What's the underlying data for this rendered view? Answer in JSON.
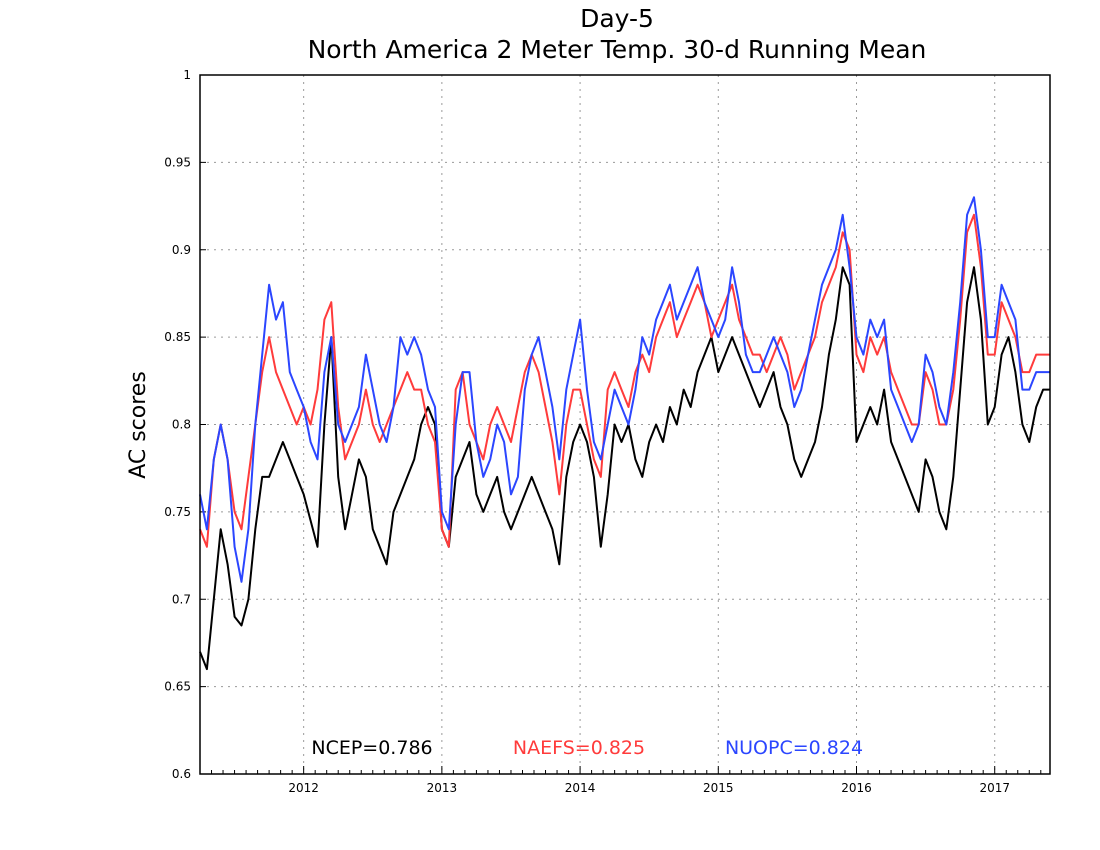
{
  "chart_data": {
    "type": "line",
    "title": "Day-5",
    "subtitle": "North America 2 Meter Temp. 30-d Running Mean",
    "xlabel": "",
    "ylabel": "AC scores",
    "xlim": [
      2011.25,
      2017.4
    ],
    "ylim": [
      0.6,
      1.0
    ],
    "y_ticks": [
      "0.6",
      "0.65",
      "0.7",
      "0.75",
      "0.8",
      "0.85",
      "0.9",
      "0.95",
      "1"
    ],
    "x_ticks": [
      "2012",
      "2013",
      "2014",
      "2015",
      "2016",
      "2017"
    ],
    "grid": true,
    "series": [
      {
        "name": "NCEP",
        "color": "#000000",
        "x": [
          2011.25,
          2011.3,
          2011.35,
          2011.4,
          2011.45,
          2011.5,
          2011.55,
          2011.6,
          2011.65,
          2011.7,
          2011.75,
          2011.8,
          2011.85,
          2011.9,
          2011.95,
          2012.0,
          2012.05,
          2012.1,
          2012.15,
          2012.2,
          2012.25,
          2012.3,
          2012.35,
          2012.4,
          2012.45,
          2012.5,
          2012.55,
          2012.6,
          2012.65,
          2012.7,
          2012.75,
          2012.8,
          2012.85,
          2012.9,
          2012.95,
          2013.0,
          2013.05,
          2013.1,
          2013.15,
          2013.2,
          2013.25,
          2013.3,
          2013.35,
          2013.4,
          2013.45,
          2013.5,
          2013.55,
          2013.6,
          2013.65,
          2013.7,
          2013.75,
          2013.8,
          2013.85,
          2013.9,
          2013.95,
          2014.0,
          2014.05,
          2014.1,
          2014.15,
          2014.2,
          2014.25,
          2014.3,
          2014.35,
          2014.4,
          2014.45,
          2014.5,
          2014.55,
          2014.6,
          2014.65,
          2014.7,
          2014.75,
          2014.8,
          2014.85,
          2014.9,
          2014.95,
          2015.0,
          2015.05,
          2015.1,
          2015.15,
          2015.2,
          2015.25,
          2015.3,
          2015.35,
          2015.4,
          2015.45,
          2015.5,
          2015.55,
          2015.6,
          2015.65,
          2015.7,
          2015.75,
          2015.8,
          2015.85,
          2015.9,
          2015.95,
          2016.0,
          2016.05,
          2016.1,
          2016.15,
          2016.2,
          2016.25,
          2016.3,
          2016.35,
          2016.4,
          2016.45,
          2016.5,
          2016.55,
          2016.6,
          2016.65,
          2016.7,
          2016.75,
          2016.8,
          2016.85,
          2016.9,
          2016.95,
          2017.0,
          2017.05,
          2017.1,
          2017.15,
          2017.2,
          2017.25,
          2017.3,
          2017.35,
          2017.4
        ],
        "values": [
          0.67,
          0.66,
          0.7,
          0.74,
          0.72,
          0.69,
          0.685,
          0.7,
          0.74,
          0.77,
          0.77,
          0.78,
          0.79,
          0.78,
          0.77,
          0.76,
          0.745,
          0.73,
          0.8,
          0.85,
          0.77,
          0.74,
          0.76,
          0.78,
          0.77,
          0.74,
          0.73,
          0.72,
          0.75,
          0.76,
          0.77,
          0.78,
          0.8,
          0.81,
          0.8,
          0.74,
          0.73,
          0.77,
          0.78,
          0.79,
          0.76,
          0.75,
          0.76,
          0.77,
          0.75,
          0.74,
          0.75,
          0.76,
          0.77,
          0.76,
          0.75,
          0.74,
          0.72,
          0.77,
          0.79,
          0.8,
          0.79,
          0.77,
          0.73,
          0.76,
          0.8,
          0.79,
          0.8,
          0.78,
          0.77,
          0.79,
          0.8,
          0.79,
          0.81,
          0.8,
          0.82,
          0.81,
          0.83,
          0.84,
          0.85,
          0.83,
          0.84,
          0.85,
          0.84,
          0.83,
          0.82,
          0.81,
          0.82,
          0.83,
          0.81,
          0.8,
          0.78,
          0.77,
          0.78,
          0.79,
          0.81,
          0.84,
          0.86,
          0.89,
          0.88,
          0.79,
          0.8,
          0.81,
          0.8,
          0.82,
          0.79,
          0.78,
          0.77,
          0.76,
          0.75,
          0.78,
          0.77,
          0.75,
          0.74,
          0.77,
          0.82,
          0.87,
          0.89,
          0.86,
          0.8,
          0.81,
          0.84,
          0.85,
          0.83,
          0.8,
          0.79,
          0.81,
          0.82,
          0.82
        ]
      },
      {
        "name": "NAEFS",
        "color": "#ff3b3b",
        "x": [
          2011.25,
          2011.3,
          2011.35,
          2011.4,
          2011.45,
          2011.5,
          2011.55,
          2011.6,
          2011.65,
          2011.7,
          2011.75,
          2011.8,
          2011.85,
          2011.9,
          2011.95,
          2012.0,
          2012.05,
          2012.1,
          2012.15,
          2012.2,
          2012.25,
          2012.3,
          2012.35,
          2012.4,
          2012.45,
          2012.5,
          2012.55,
          2012.6,
          2012.65,
          2012.7,
          2012.75,
          2012.8,
          2012.85,
          2012.9,
          2012.95,
          2013.0,
          2013.05,
          2013.1,
          2013.15,
          2013.2,
          2013.25,
          2013.3,
          2013.35,
          2013.4,
          2013.45,
          2013.5,
          2013.55,
          2013.6,
          2013.65,
          2013.7,
          2013.75,
          2013.8,
          2013.85,
          2013.9,
          2013.95,
          2014.0,
          2014.05,
          2014.1,
          2014.15,
          2014.2,
          2014.25,
          2014.3,
          2014.35,
          2014.4,
          2014.45,
          2014.5,
          2014.55,
          2014.6,
          2014.65,
          2014.7,
          2014.75,
          2014.8,
          2014.85,
          2014.9,
          2014.95,
          2015.0,
          2015.05,
          2015.1,
          2015.15,
          2015.2,
          2015.25,
          2015.3,
          2015.35,
          2015.4,
          2015.45,
          2015.5,
          2015.55,
          2015.6,
          2015.65,
          2015.7,
          2015.75,
          2015.8,
          2015.85,
          2015.9,
          2015.95,
          2016.0,
          2016.05,
          2016.1,
          2016.15,
          2016.2,
          2016.25,
          2016.3,
          2016.35,
          2016.4,
          2016.45,
          2016.5,
          2016.55,
          2016.6,
          2016.65,
          2016.7,
          2016.75,
          2016.8,
          2016.85,
          2016.9,
          2016.95,
          2017.0,
          2017.05,
          2017.1,
          2017.15,
          2017.2,
          2017.25,
          2017.3,
          2017.35,
          2017.4
        ],
        "values": [
          0.74,
          0.73,
          0.78,
          0.8,
          0.78,
          0.75,
          0.74,
          0.77,
          0.8,
          0.83,
          0.85,
          0.83,
          0.82,
          0.81,
          0.8,
          0.81,
          0.8,
          0.82,
          0.86,
          0.87,
          0.81,
          0.78,
          0.79,
          0.8,
          0.82,
          0.8,
          0.79,
          0.8,
          0.81,
          0.82,
          0.83,
          0.82,
          0.82,
          0.8,
          0.79,
          0.74,
          0.73,
          0.82,
          0.83,
          0.8,
          0.79,
          0.78,
          0.8,
          0.81,
          0.8,
          0.79,
          0.81,
          0.83,
          0.84,
          0.83,
          0.81,
          0.79,
          0.76,
          0.8,
          0.82,
          0.82,
          0.8,
          0.78,
          0.77,
          0.82,
          0.83,
          0.82,
          0.81,
          0.83,
          0.84,
          0.83,
          0.85,
          0.86,
          0.87,
          0.85,
          0.86,
          0.87,
          0.88,
          0.87,
          0.85,
          0.86,
          0.87,
          0.88,
          0.86,
          0.85,
          0.84,
          0.84,
          0.83,
          0.84,
          0.85,
          0.84,
          0.82,
          0.83,
          0.84,
          0.85,
          0.87,
          0.88,
          0.89,
          0.91,
          0.9,
          0.84,
          0.83,
          0.85,
          0.84,
          0.85,
          0.83,
          0.82,
          0.81,
          0.8,
          0.8,
          0.83,
          0.82,
          0.8,
          0.8,
          0.82,
          0.86,
          0.91,
          0.92,
          0.89,
          0.84,
          0.84,
          0.87,
          0.86,
          0.85,
          0.83,
          0.83,
          0.84,
          0.84,
          0.84
        ]
      },
      {
        "name": "NUOPC",
        "color": "#2b46ff",
        "x": [
          2011.25,
          2011.3,
          2011.35,
          2011.4,
          2011.45,
          2011.5,
          2011.55,
          2011.6,
          2011.65,
          2011.7,
          2011.75,
          2011.8,
          2011.85,
          2011.9,
          2011.95,
          2012.0,
          2012.05,
          2012.1,
          2012.15,
          2012.2,
          2012.25,
          2012.3,
          2012.35,
          2012.4,
          2012.45,
          2012.5,
          2012.55,
          2012.6,
          2012.65,
          2012.7,
          2012.75,
          2012.8,
          2012.85,
          2012.9,
          2012.95,
          2013.0,
          2013.05,
          2013.1,
          2013.15,
          2013.2,
          2013.25,
          2013.3,
          2013.35,
          2013.4,
          2013.45,
          2013.5,
          2013.55,
          2013.6,
          2013.65,
          2013.7,
          2013.75,
          2013.8,
          2013.85,
          2013.9,
          2013.95,
          2014.0,
          2014.05,
          2014.1,
          2014.15,
          2014.2,
          2014.25,
          2014.3,
          2014.35,
          2014.4,
          2014.45,
          2014.5,
          2014.55,
          2014.6,
          2014.65,
          2014.7,
          2014.75,
          2014.8,
          2014.85,
          2014.9,
          2014.95,
          2015.0,
          2015.05,
          2015.1,
          2015.15,
          2015.2,
          2015.25,
          2015.3,
          2015.35,
          2015.4,
          2015.45,
          2015.5,
          2015.55,
          2015.6,
          2015.65,
          2015.7,
          2015.75,
          2015.8,
          2015.85,
          2015.9,
          2015.95,
          2016.0,
          2016.05,
          2016.1,
          2016.15,
          2016.2,
          2016.25,
          2016.3,
          2016.35,
          2016.4,
          2016.45,
          2016.5,
          2016.55,
          2016.6,
          2016.65,
          2016.7,
          2016.75,
          2016.8,
          2016.85,
          2016.9,
          2016.95,
          2017.0,
          2017.05,
          2017.1,
          2017.15,
          2017.2,
          2017.25,
          2017.3,
          2017.35,
          2017.4
        ],
        "values": [
          0.76,
          0.74,
          0.78,
          0.8,
          0.78,
          0.73,
          0.71,
          0.74,
          0.8,
          0.84,
          0.88,
          0.86,
          0.87,
          0.83,
          0.82,
          0.81,
          0.79,
          0.78,
          0.83,
          0.85,
          0.8,
          0.79,
          0.8,
          0.81,
          0.84,
          0.82,
          0.8,
          0.79,
          0.81,
          0.85,
          0.84,
          0.85,
          0.84,
          0.82,
          0.81,
          0.75,
          0.74,
          0.8,
          0.83,
          0.83,
          0.79,
          0.77,
          0.78,
          0.8,
          0.79,
          0.76,
          0.77,
          0.82,
          0.84,
          0.85,
          0.83,
          0.81,
          0.78,
          0.82,
          0.84,
          0.86,
          0.82,
          0.79,
          0.78,
          0.8,
          0.82,
          0.81,
          0.8,
          0.82,
          0.85,
          0.84,
          0.86,
          0.87,
          0.88,
          0.86,
          0.87,
          0.88,
          0.89,
          0.87,
          0.86,
          0.85,
          0.86,
          0.89,
          0.87,
          0.84,
          0.83,
          0.83,
          0.84,
          0.85,
          0.84,
          0.83,
          0.81,
          0.82,
          0.84,
          0.86,
          0.88,
          0.89,
          0.9,
          0.92,
          0.89,
          0.85,
          0.84,
          0.86,
          0.85,
          0.86,
          0.82,
          0.81,
          0.8,
          0.79,
          0.8,
          0.84,
          0.83,
          0.81,
          0.8,
          0.83,
          0.87,
          0.92,
          0.93,
          0.9,
          0.85,
          0.85,
          0.88,
          0.87,
          0.86,
          0.82,
          0.82,
          0.83,
          0.83,
          0.83
        ]
      }
    ],
    "stats": [
      {
        "label": "NCEP=0.786",
        "color": "#000000"
      },
      {
        "label": "NAEFS=0.825",
        "color": "#ff3b3b"
      },
      {
        "label": "NUOPC=0.824",
        "color": "#2b46ff"
      }
    ]
  }
}
